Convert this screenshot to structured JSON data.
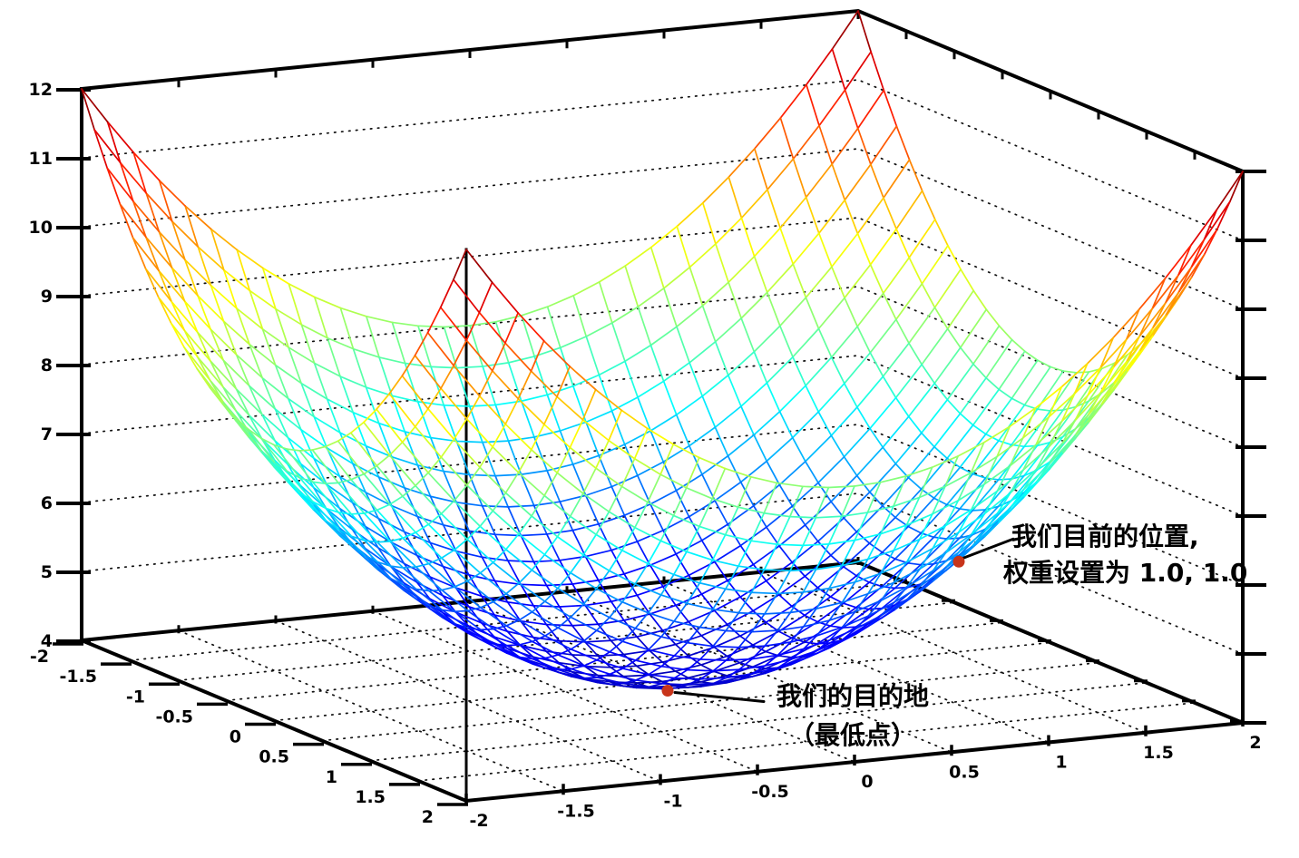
{
  "chart_data": {
    "type": "surface",
    "subtype": "3d-wireframe",
    "title": "",
    "z_function": "z = x^2 + y^2 + 4",
    "x_range": [
      -2,
      2
    ],
    "y_range": [
      -2,
      2
    ],
    "z_range": [
      4,
      12
    ],
    "x_ticks": [
      "-2",
      "-1.5",
      "-1",
      "-0.5",
      "0",
      "0.5",
      "1",
      "1.5",
      "2"
    ],
    "y_ticks": [
      "-2",
      "-1.5",
      "-1",
      "-0.5",
      "0",
      "0.5",
      "1",
      "1.5",
      "2"
    ],
    "z_ticks": [
      "4",
      "5",
      "6",
      "7",
      "8",
      "9",
      "10",
      "11",
      "12"
    ],
    "mesh_divisions": 30,
    "colormap": "jet",
    "grid_style": "dotted",
    "wall_grid_z_levels": [
      5,
      6,
      7,
      8,
      9,
      10,
      11
    ],
    "marker_color": "#c8341a",
    "axis_color": "#000000",
    "annotations": [
      {
        "id": "current",
        "text_lines": [
          "我们目前的位置,",
          "权重设置为 1.0, 1.0"
        ],
        "point": {
          "x": 1.0,
          "y": 1.0,
          "z": 6.0
        }
      },
      {
        "id": "destination",
        "text_lines": [
          "我们的目的地",
          "（最低点）"
        ],
        "point": {
          "x": 0.0,
          "y": 0.0,
          "z": 4.0
        }
      }
    ]
  }
}
